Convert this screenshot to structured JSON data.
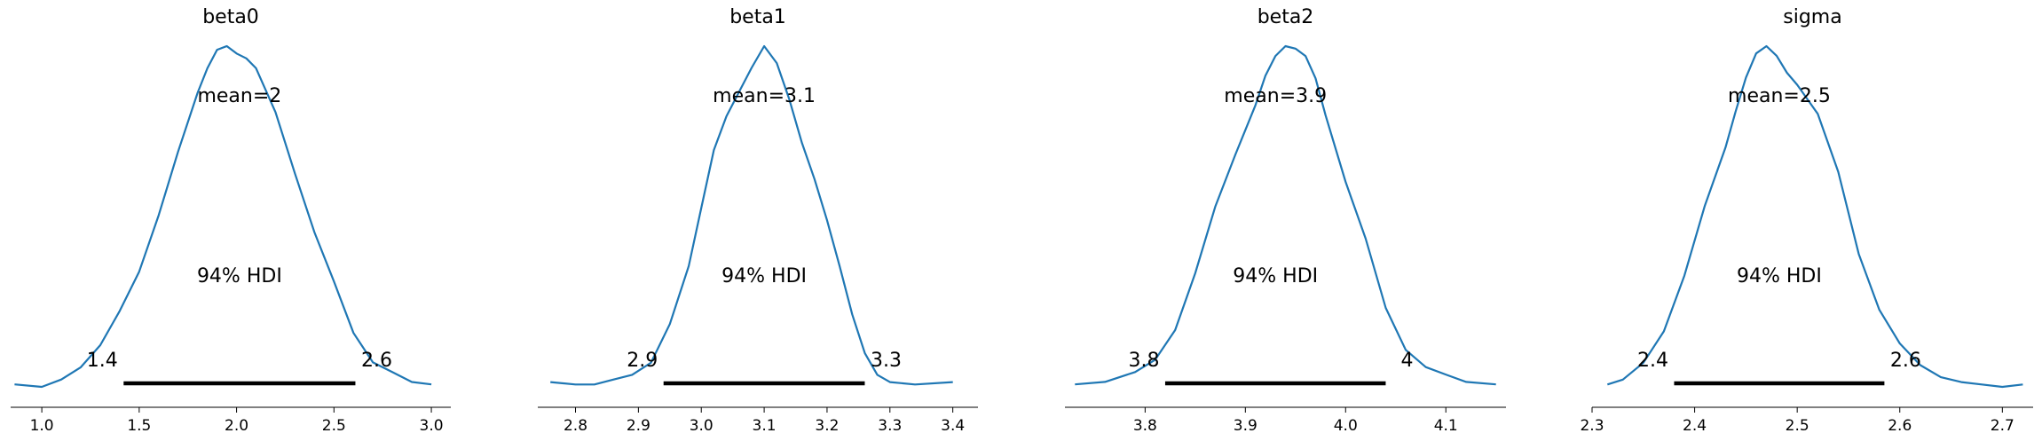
{
  "chart_data": [
    {
      "type": "line",
      "title": "beta0",
      "mean_label": "mean=2",
      "hdi_label": "94% HDI",
      "hdi": [
        1.42,
        2.61
      ],
      "hdi_low_label": "1.4",
      "hdi_high_label": "2.6",
      "xlim": [
        0.84,
        3.1
      ],
      "xticks": [
        1.0,
        1.5,
        2.0,
        2.5,
        3.0
      ],
      "xtick_labels": [
        "1.0",
        "1.5",
        "2.0",
        "2.5",
        "3.0"
      ],
      "density": {
        "x": [
          0.86,
          1.0,
          1.1,
          1.2,
          1.3,
          1.4,
          1.5,
          1.6,
          1.7,
          1.8,
          1.85,
          1.9,
          1.95,
          2.0,
          2.05,
          2.1,
          2.2,
          2.3,
          2.4,
          2.5,
          2.6,
          2.7,
          2.8,
          2.9,
          3.0
        ],
        "y": [
          0.01,
          0.0,
          0.03,
          0.08,
          0.17,
          0.31,
          0.47,
          0.7,
          0.96,
          1.2,
          1.3,
          1.375,
          1.39,
          1.36,
          1.34,
          1.3,
          1.12,
          0.87,
          0.63,
          0.43,
          0.22,
          0.1,
          0.06,
          0.02,
          0.01
        ]
      }
    },
    {
      "type": "line",
      "title": "beta1",
      "mean_label": "mean=3.1",
      "hdi_label": "94% HDI",
      "hdi": [
        2.94,
        3.26
      ],
      "hdi_low_label": "2.9",
      "hdi_high_label": "3.3",
      "xlim": [
        2.74,
        3.44
      ],
      "xticks": [
        2.8,
        2.9,
        3.0,
        3.1,
        3.2,
        3.3,
        3.4
      ],
      "xtick_labels": [
        "2.8",
        "2.9",
        "3.0",
        "3.1",
        "3.2",
        "3.3",
        "3.4"
      ],
      "density": {
        "x": [
          2.76,
          2.8,
          2.83,
          2.86,
          2.89,
          2.92,
          2.95,
          2.98,
          3.0,
          3.02,
          3.04,
          3.06,
          3.08,
          3.1,
          3.12,
          3.14,
          3.16,
          3.18,
          3.2,
          3.22,
          3.24,
          3.26,
          3.28,
          3.3,
          3.34,
          3.4
        ],
        "y": [
          0.02,
          0.01,
          0.01,
          0.03,
          0.05,
          0.1,
          0.26,
          0.5,
          0.74,
          0.98,
          1.12,
          1.22,
          1.32,
          1.41,
          1.34,
          1.19,
          1.01,
          0.86,
          0.69,
          0.5,
          0.3,
          0.14,
          0.05,
          0.02,
          0.01,
          0.02
        ]
      }
    },
    {
      "type": "line",
      "title": "beta2",
      "mean_label": "mean=3.9",
      "hdi_label": "94% HDI",
      "hdi": [
        3.82,
        4.04
      ],
      "hdi_low_label": "3.8",
      "hdi_high_label": "4",
      "xlim": [
        3.72,
        4.16
      ],
      "xticks": [
        3.8,
        3.9,
        4.0,
        4.1
      ],
      "xtick_labels": [
        "3.8",
        "3.9",
        "4.0",
        "4.1"
      ],
      "density": {
        "x": [
          3.73,
          3.76,
          3.79,
          3.81,
          3.83,
          3.85,
          3.87,
          3.89,
          3.91,
          3.92,
          3.93,
          3.94,
          3.95,
          3.96,
          3.97,
          3.98,
          4.0,
          4.02,
          4.04,
          4.06,
          4.08,
          4.1,
          4.12,
          4.15
        ],
        "y": [
          0.01,
          0.02,
          0.06,
          0.11,
          0.23,
          0.46,
          0.73,
          0.94,
          1.14,
          1.26,
          1.34,
          1.38,
          1.37,
          1.34,
          1.25,
          1.1,
          0.83,
          0.6,
          0.32,
          0.15,
          0.08,
          0.05,
          0.02,
          0.01
        ]
      }
    },
    {
      "type": "line",
      "title": "sigma",
      "mean_label": "mean=2.5",
      "hdi_label": "94% HDI",
      "hdi": [
        2.38,
        2.585
      ],
      "hdi_low_label": "2.4",
      "hdi_high_label": "2.6",
      "xlim": [
        2.3,
        2.73
      ],
      "xticks": [
        2.3,
        2.4,
        2.5,
        2.6,
        2.7
      ],
      "xtick_labels": [
        "2.3",
        "2.4",
        "2.5",
        "2.6",
        "2.7"
      ],
      "density": {
        "x": [
          2.315,
          2.33,
          2.35,
          2.37,
          2.39,
          2.41,
          2.43,
          2.44,
          2.45,
          2.46,
          2.47,
          2.48,
          2.49,
          2.5,
          2.52,
          2.54,
          2.56,
          2.58,
          2.6,
          2.62,
          2.64,
          2.66,
          2.68,
          2.7,
          2.72
        ],
        "y": [
          0.01,
          0.03,
          0.1,
          0.23,
          0.46,
          0.75,
          0.99,
          1.14,
          1.28,
          1.38,
          1.41,
          1.37,
          1.3,
          1.25,
          1.13,
          0.89,
          0.55,
          0.32,
          0.18,
          0.09,
          0.04,
          0.02,
          0.01,
          0.0,
          0.01
        ]
      }
    }
  ]
}
